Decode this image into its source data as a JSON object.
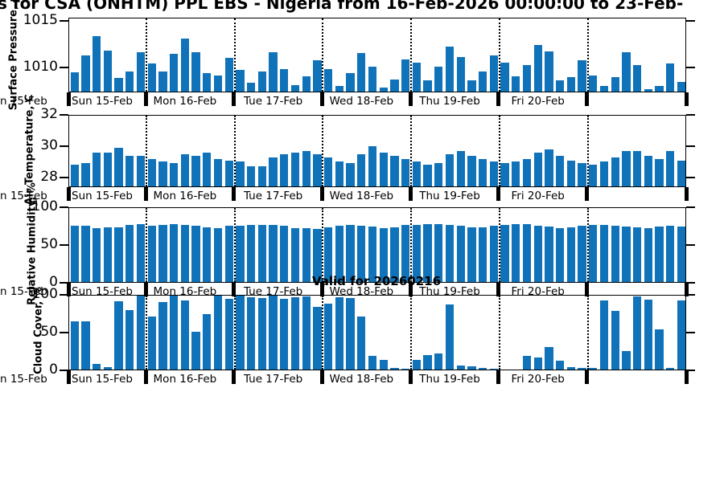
{
  "title": "s for CSA (ONHTM) PPL EBS  - Nigeria from 16-Feb-2026 00:00:00 to 23-Feb-",
  "annotation": {
    "valid_label": "Valid for 20260216"
  },
  "bar_color": "#1072B8",
  "left_edge_clipped_label": "n 15-Feb",
  "day_labels": [
    "Sun 15-Feb",
    "Mon 16-Feb",
    "Tue 17-Feb",
    "Wed 18-Feb",
    "Thu 19-Feb",
    "Fri 20-Feb"
  ],
  "bars_per_day": [
    7,
    8,
    8,
    8,
    8,
    8,
    9
  ],
  "chart_data": [
    {
      "type": "bar",
      "name": "surface-pressure",
      "ylabel": "Surface Pressure, mb",
      "ylim": [
        1007.3,
        1015.3
      ],
      "yticks": [
        1010,
        1015
      ],
      "ytick_labels": [
        "1010",
        "1015"
      ],
      "x_day_labels": [
        "Sun 15-Feb",
        "Mon 16-Feb",
        "Tue 17-Feb",
        "Wed 18-Feb",
        "Thu 19-Feb",
        "Fri 20-Feb"
      ],
      "grid": "dotted-vertical-day-boundaries",
      "values": [
        1009.4,
        1011.3,
        1013.4,
        1011.8,
        1008.8,
        1009.5,
        1011.6,
        1010.4,
        1009.5,
        1011.4,
        1013.1,
        1011.6,
        1009.3,
        1009.1,
        1011.0,
        1009.7,
        1008.3,
        1009.5,
        1011.6,
        1009.8,
        1008.0,
        1009.0,
        1010.7,
        1009.8,
        1007.9,
        1009.3,
        1011.5,
        1010.0,
        1007.7,
        1008.6,
        1010.8,
        1010.5,
        1008.5,
        1010.0,
        1012.2,
        1011.1,
        1008.5,
        1009.5,
        1011.3,
        1010.5,
        1009.0,
        1010.2,
        1012.4,
        1011.7,
        1008.5,
        1008.9,
        1010.7,
        1009.1,
        1007.9,
        1008.9,
        1011.6,
        1010.2,
        1007.6,
        1007.9,
        1010.4,
        1008.4
      ]
    },
    {
      "type": "bar",
      "name": "air-temperature",
      "ylabel": "Air Temperature, C",
      "ylim": [
        27.4,
        32
      ],
      "yticks": [
        28,
        30,
        32
      ],
      "ytick_labels": [
        "28",
        "30",
        "32"
      ],
      "x_day_labels": [
        "Sun 15-Feb",
        "Mon 16-Feb",
        "Tue 17-Feb",
        "Wed 18-Feb",
        "Thu 19-Feb",
        "Fri 20-Feb"
      ],
      "grid": "dotted-vertical-day-boundaries",
      "values": [
        28.8,
        28.9,
        29.6,
        29.6,
        29.9,
        29.4,
        29.4,
        29.2,
        29.0,
        28.9,
        29.5,
        29.4,
        29.6,
        29.2,
        29.1,
        29.0,
        28.7,
        28.7,
        29.3,
        29.5,
        29.6,
        29.7,
        29.5,
        29.3,
        29.0,
        28.9,
        29.5,
        30.0,
        29.6,
        29.4,
        29.2,
        29.0,
        28.8,
        28.9,
        29.5,
        29.7,
        29.4,
        29.2,
        29.0,
        28.9,
        29.0,
        29.2,
        29.6,
        29.8,
        29.4,
        29.1,
        28.9,
        28.8,
        29.0,
        29.3,
        29.7,
        29.7,
        29.4,
        29.2,
        29.7,
        29.1
      ]
    },
    {
      "type": "bar",
      "name": "relative-humidity",
      "ylabel": "Relative Humidity, %",
      "ylim": [
        0,
        100
      ],
      "yticks": [
        0,
        50,
        100
      ],
      "ytick_labels": [
        "0",
        "50",
        "100"
      ],
      "x_day_labels": [
        "Sun 15-Feb",
        "Mon 16-Feb",
        "Tue 17-Feb",
        "Wed 18-Feb",
        "Thu 19-Feb",
        "Fri 20-Feb"
      ],
      "grid": "dotted-vertical-day-boundaries",
      "values": [
        76,
        76,
        73,
        74,
        74,
        77,
        78,
        76,
        77,
        78,
        77,
        76,
        74,
        73,
        76,
        76,
        77,
        77,
        77,
        76,
        73,
        73,
        72,
        74,
        76,
        77,
        76,
        75,
        73,
        74,
        77,
        77,
        78,
        78,
        77,
        76,
        74,
        74,
        76,
        77,
        78,
        78,
        76,
        75,
        73,
        74,
        76,
        77,
        77,
        76,
        75,
        74,
        73,
        75,
        76,
        75
      ]
    },
    {
      "type": "bar",
      "name": "cloud-cover",
      "ylabel": "Cloud Cover, %",
      "ylim": [
        0,
        100
      ],
      "yticks": [
        0,
        50,
        100
      ],
      "ytick_labels": [
        "0",
        "50",
        "100"
      ],
      "x_day_labels": [
        "Sun 15-Feb",
        "Mon 16-Feb",
        "Tue 17-Feb",
        "Wed 18-Feb",
        "Thu 19-Feb",
        "Fri 20-Feb"
      ],
      "grid": "dotted-vertical-day-boundaries",
      "values": [
        65,
        65,
        8,
        3,
        92,
        81,
        100,
        72,
        91,
        100,
        93,
        51,
        75,
        100,
        96,
        100,
        98,
        97,
        100,
        96,
        98,
        99,
        85,
        89,
        98,
        97,
        72,
        18,
        13,
        2,
        1,
        13,
        20,
        22,
        88,
        5,
        4,
        2,
        1,
        0,
        0,
        18,
        16,
        31,
        12,
        3,
        2,
        2,
        94,
        79,
        25,
        99,
        95,
        54,
        2,
        93
      ]
    }
  ]
}
